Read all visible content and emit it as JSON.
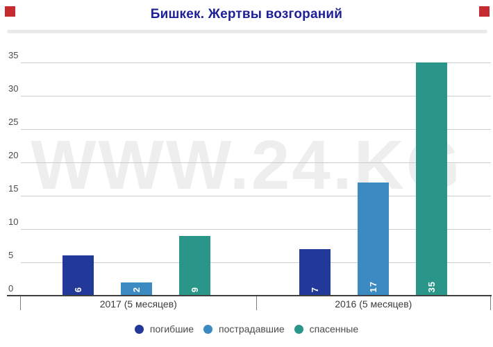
{
  "title": "Бишкек. Жертвы возгораний",
  "watermark": "WWW.24.KG",
  "colors": {
    "title": "#1c1f96",
    "corner": "#c52b30",
    "watermark": "#eeeeee"
  },
  "chart_data": {
    "type": "bar",
    "title": "Бишкек. Жертвы возгораний",
    "categories": [
      "2017 (5 месяцев)",
      "2016 (5 месяцев)"
    ],
    "series": [
      {
        "name": "погибшие",
        "color": "#23399a",
        "values": [
          6,
          7
        ]
      },
      {
        "name": "пострадавшие",
        "color": "#3c8ac2",
        "values": [
          2,
          17
        ]
      },
      {
        "name": "спасенные",
        "color": "#2a968a",
        "values": [
          9,
          35
        ]
      }
    ],
    "ylim": [
      0,
      35
    ],
    "yticks": [
      0,
      5,
      10,
      15,
      20,
      25,
      30,
      35
    ],
    "grid": true,
    "bar_labels": true,
    "legend_position": "bottom"
  }
}
